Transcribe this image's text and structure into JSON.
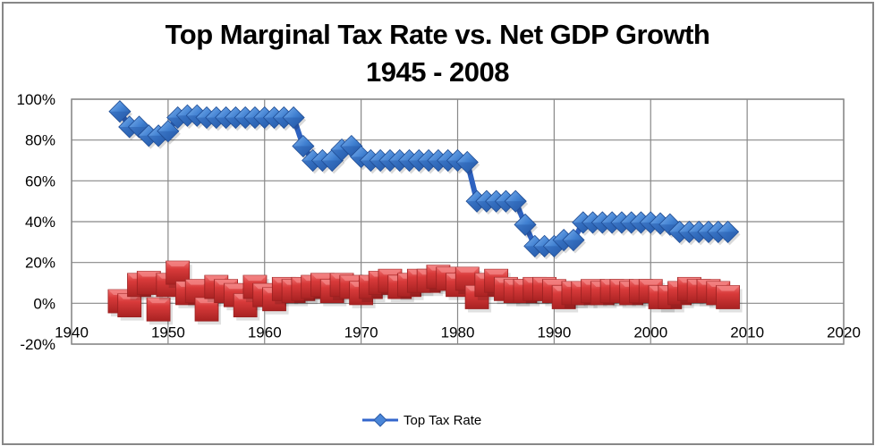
{
  "chart_data": {
    "type": "line",
    "title": "Top Marginal Tax Rate vs. Net GDP Growth",
    "subtitle": "1945 - 2008",
    "xlabel": "",
    "ylabel": "",
    "xlim": [
      1940,
      2020
    ],
    "ylim": [
      -0.2,
      1.0
    ],
    "x_ticks": [
      "1940",
      "1950",
      "1960",
      "1970",
      "1980",
      "1990",
      "2000",
      "2010",
      "2020"
    ],
    "y_ticks": [
      "100%",
      "80%",
      "60%",
      "40%",
      "20%",
      "0%",
      "-20%"
    ],
    "grid": true,
    "legend": {
      "placement": "bottom",
      "entries": [
        "Top Tax Rate"
      ]
    },
    "x": [
      1945,
      1946,
      1947,
      1948,
      1949,
      1950,
      1951,
      1952,
      1953,
      1954,
      1955,
      1956,
      1957,
      1958,
      1959,
      1960,
      1961,
      1962,
      1963,
      1964,
      1965,
      1966,
      1967,
      1968,
      1969,
      1970,
      1971,
      1972,
      1973,
      1974,
      1975,
      1976,
      1977,
      1978,
      1979,
      1980,
      1981,
      1982,
      1983,
      1984,
      1985,
      1986,
      1987,
      1988,
      1989,
      1990,
      1991,
      1992,
      1993,
      1994,
      1995,
      1996,
      1997,
      1998,
      1999,
      2000,
      2001,
      2002,
      2003,
      2004,
      2005,
      2006,
      2007,
      2008
    ],
    "series": [
      {
        "name": "Top Tax Rate",
        "color": "#3366cc",
        "marker": "diamond",
        "values": [
          0.94,
          0.8645,
          0.8645,
          0.8213,
          0.8213,
          0.8436,
          0.91,
          0.92,
          0.92,
          0.91,
          0.91,
          0.91,
          0.91,
          0.91,
          0.91,
          0.91,
          0.91,
          0.91,
          0.91,
          0.77,
          0.7,
          0.7,
          0.7,
          0.7525,
          0.77,
          0.7175,
          0.7,
          0.7,
          0.7,
          0.7,
          0.7,
          0.7,
          0.7,
          0.7,
          0.7,
          0.7,
          0.6913,
          0.5,
          0.5,
          0.5,
          0.5,
          0.5,
          0.385,
          0.28,
          0.28,
          0.28,
          0.31,
          0.31,
          0.396,
          0.396,
          0.396,
          0.396,
          0.396,
          0.396,
          0.396,
          0.396,
          0.391,
          0.386,
          0.35,
          0.35,
          0.35,
          0.35,
          0.35,
          0.35
        ]
      },
      {
        "name": "Net GDP Growth",
        "color": "#cc3333",
        "marker": "square",
        "in_legend": false,
        "values_note": "approximate — estimated from marker heights; markers overlap too densely for exact per-year values",
        "values": [
          0.01,
          -0.01,
          0.09,
          0.1,
          -0.03,
          0.09,
          0.15,
          0.05,
          0.06,
          -0.03,
          0.08,
          0.06,
          0.04,
          -0.01,
          0.08,
          0.04,
          0.02,
          0.07,
          0.06,
          0.07,
          0.08,
          0.09,
          0.06,
          0.09,
          0.08,
          0.05,
          0.08,
          0.1,
          0.11,
          0.08,
          0.09,
          0.11,
          0.11,
          0.13,
          0.12,
          0.09,
          0.12,
          0.03,
          0.09,
          0.11,
          0.07,
          0.06,
          0.06,
          0.07,
          0.07,
          0.06,
          0.03,
          0.05,
          0.05,
          0.06,
          0.05,
          0.06,
          0.06,
          0.05,
          0.06,
          0.06,
          0.03,
          0.03,
          0.05,
          0.07,
          0.06,
          0.06,
          0.05,
          0.03
        ]
      }
    ]
  }
}
